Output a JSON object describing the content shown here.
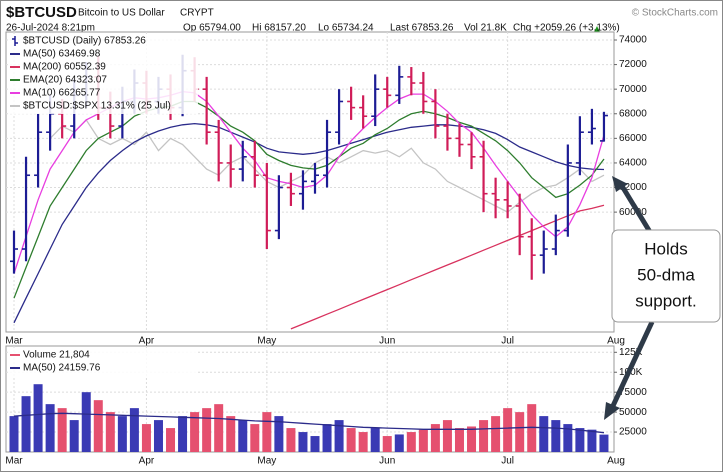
{
  "header": {
    "symbol": "$BTCUSD",
    "description": "Bitcoin to US Dollar",
    "exchange": "CRYPT",
    "copyright": "© StockCharts.com",
    "date": "26-Jul-2024 8:21pm",
    "open": "Op 65794.00",
    "high": "Hi 68157.20",
    "low": "Lo 65734.24",
    "last": "Last 67853.26",
    "volume": "Vol 21.8K",
    "change": "Chg +2059.26 (+3.13%)"
  },
  "chart_data": [
    {
      "type": "ohlc",
      "name": "$BTCUSD (Daily) 67853.26",
      "up_color": "#1c1c94",
      "down_color": "#d01c58",
      "categories": [
        "Mar",
        null,
        null,
        null,
        null,
        null,
        null,
        null,
        null,
        null,
        null,
        "Apr",
        null,
        null,
        null,
        null,
        null,
        null,
        null,
        null,
        null,
        "May",
        null,
        null,
        null,
        null,
        null,
        null,
        null,
        null,
        null,
        "Jun",
        null,
        null,
        null,
        null,
        null,
        null,
        null,
        null,
        null,
        "Jul",
        null,
        null,
        null,
        null,
        null,
        null,
        null,
        null,
        "Aug"
      ],
      "open": [
        56000,
        57000,
        63000,
        66500,
        68000,
        67000,
        69500,
        71000,
        68500,
        67000,
        69000,
        70500,
        69000,
        70000,
        68500,
        71500,
        70000,
        66500,
        64000,
        63500,
        64500,
        63000,
        58500,
        62000,
        61500,
        62500,
        63000,
        66500,
        69000,
        68500,
        67800,
        70000,
        69500,
        71000,
        70500,
        69000,
        67000,
        66000,
        65500,
        64500,
        61500,
        61000,
        60500,
        58000,
        56500,
        57000,
        58500,
        64000,
        66500,
        65794,
        null
      ],
      "high": [
        58500,
        64500,
        68000,
        69500,
        69200,
        70800,
        72200,
        72700,
        69800,
        70200,
        71600,
        71500,
        71000,
        71200,
        72800,
        72600,
        71000,
        67500,
        65500,
        65800,
        65800,
        64000,
        63000,
        63200,
        63400,
        64000,
        67500,
        70000,
        70200,
        69500,
        71200,
        71000,
        71900,
        71800,
        71400,
        70000,
        68000,
        67200,
        66500,
        65800,
        62800,
        62500,
        61500,
        59500,
        58500,
        59800,
        65500,
        67800,
        68400,
        68157.2,
        null
      ],
      "low": [
        55000,
        56000,
        62000,
        65000,
        66000,
        66000,
        68500,
        67500,
        66000,
        66000,
        68000,
        68000,
        68000,
        67500,
        67800,
        69000,
        65500,
        62500,
        62000,
        62500,
        62000,
        57000,
        57800,
        60500,
        60200,
        61500,
        62000,
        65500,
        67500,
        66800,
        67000,
        68500,
        68800,
        69500,
        68000,
        66000,
        65000,
        64500,
        63500,
        60000,
        59500,
        59500,
        56500,
        54500,
        55000,
        56500,
        58000,
        63000,
        65500,
        65734.24,
        null
      ],
      "close": [
        57000,
        63000,
        66500,
        68000,
        67000,
        69500,
        71000,
        68500,
        67000,
        69000,
        70500,
        69000,
        70000,
        68500,
        71500,
        70000,
        66500,
        64000,
        63500,
        64500,
        63000,
        58500,
        62000,
        61500,
        62500,
        63000,
        66500,
        69000,
        68500,
        67800,
        70000,
        69500,
        71000,
        70500,
        69000,
        67000,
        66000,
        65500,
        64500,
        61500,
        61000,
        60500,
        58000,
        56500,
        57000,
        58500,
        64000,
        66500,
        66800,
        67853.26,
        null
      ],
      "series": [
        {
          "name": "MA(50) 63469.98",
          "color": "#2b2b8a",
          "values": [
            51000,
            53000,
            55000,
            57000,
            59000,
            60500,
            62000,
            63200,
            64200,
            65000,
            65700,
            66200,
            66600,
            66900,
            67100,
            67200,
            67100,
            66900,
            66500,
            66100,
            65700,
            65200,
            64900,
            64800,
            64700,
            64800,
            65000,
            65300,
            65600,
            65900,
            66200,
            66500,
            66700,
            66900,
            67000,
            67100,
            67100,
            67000,
            66900,
            66700,
            66400,
            65900,
            65300,
            64900,
            64500,
            64100,
            63800,
            63600,
            63500,
            63470,
            null
          ]
        },
        {
          "name": "MA(200) 60552.39",
          "color": "#d8325e",
          "values": [
            null,
            null,
            null,
            null,
            null,
            null,
            null,
            null,
            null,
            null,
            null,
            null,
            null,
            null,
            null,
            null,
            null,
            null,
            null,
            null,
            null,
            null,
            null,
            50500,
            50900,
            51300,
            51700,
            52100,
            52500,
            52900,
            53300,
            53700,
            54100,
            54500,
            54900,
            55300,
            55700,
            56100,
            56500,
            56900,
            57300,
            57700,
            58100,
            58500,
            58900,
            59300,
            59700,
            60100,
            60300,
            60552,
            null
          ]
        },
        {
          "name": "EMA(20) 64323.07",
          "color": "#2e7d2e",
          "values": [
            53000,
            55500,
            58000,
            60500,
            62000,
            63500,
            65000,
            66000,
            66500,
            67000,
            67800,
            68200,
            68500,
            68600,
            69000,
            69000,
            68500,
            67800,
            67000,
            66500,
            65800,
            64700,
            64200,
            63800,
            63600,
            63500,
            63800,
            64500,
            65200,
            65600,
            66300,
            66800,
            67500,
            68000,
            68200,
            68000,
            67700,
            67300,
            67000,
            66400,
            65800,
            65000,
            64000,
            62800,
            62000,
            61200,
            61500,
            62200,
            63000,
            64323,
            null
          ]
        },
        {
          "name": "MA(10) 66265.77",
          "color": "#e83ee0",
          "values": [
            55000,
            58000,
            61000,
            63500,
            65000,
            66500,
            67500,
            68000,
            68500,
            69000,
            69300,
            69200,
            69300,
            69500,
            69800,
            69700,
            69000,
            67800,
            66500,
            65200,
            64200,
            62800,
            62500,
            62300,
            62000,
            62200,
            63000,
            64500,
            65800,
            66800,
            67700,
            68500,
            69200,
            69600,
            69600,
            69000,
            68200,
            67200,
            66500,
            65200,
            63800,
            62500,
            61200,
            59800,
            58800,
            58000,
            58800,
            60600,
            62800,
            66266,
            null
          ]
        },
        {
          "name": "$BTCUSD:$SPX 13.31% (25 Jul)",
          "color": "#c4c4c4",
          "values": [
            null,
            null,
            null,
            66000,
            67000,
            66500,
            67500,
            66000,
            65500,
            66000,
            65500,
            66500,
            65000,
            66000,
            65500,
            64500,
            63500,
            63000,
            64000,
            64500,
            63500,
            62500,
            62000,
            62500,
            63000,
            64000,
            64500,
            64000,
            64500,
            65000,
            64800,
            65000,
            64500,
            65200,
            64000,
            63500,
            62500,
            62000,
            61500,
            61000,
            60500,
            60000,
            60800,
            61500,
            62000,
            62200,
            62800,
            63500,
            62500,
            63000,
            null
          ]
        }
      ],
      "ylim": [
        50250,
        74650
      ],
      "yticks": [
        60000,
        62000,
        64000,
        66000,
        68000,
        70000,
        72000,
        74000
      ],
      "grid": true,
      "annotation": [
        "Holds",
        "50-dma",
        "support."
      ]
    },
    {
      "type": "bar",
      "name": "Volume 21,804",
      "up_color": "#3a3ab4",
      "down_color": "#e5506f",
      "categories": [
        "Mar",
        null,
        null,
        null,
        null,
        null,
        null,
        null,
        null,
        null,
        null,
        "Apr",
        null,
        null,
        null,
        null,
        null,
        null,
        null,
        null,
        null,
        "May",
        null,
        null,
        null,
        null,
        null,
        null,
        null,
        null,
        null,
        "Jun",
        null,
        null,
        null,
        null,
        null,
        null,
        null,
        null,
        null,
        "Jul",
        null,
        null,
        null,
        null,
        null,
        null,
        null,
        null,
        "Aug"
      ],
      "values": [
        45000,
        70000,
        85000,
        60000,
        55000,
        40000,
        75000,
        65000,
        50000,
        45000,
        55000,
        35000,
        40000,
        30000,
        45000,
        50000,
        55000,
        60000,
        45000,
        40000,
        35000,
        50000,
        45000,
        30000,
        25000,
        20000,
        35000,
        40000,
        30000,
        25000,
        30000,
        20000,
        22000,
        25000,
        28000,
        35000,
        40000,
        30000,
        32000,
        40000,
        45000,
        55000,
        50000,
        60000,
        45000,
        40000,
        35000,
        30000,
        28000,
        21804,
        null
      ],
      "series": [
        {
          "name": "MA(50) 24159.76",
          "color": "#2b2b8a",
          "values": [
            45000,
            46000,
            47000,
            48000,
            48500,
            48000,
            47500,
            47000,
            46500,
            46000,
            45500,
            45000,
            44500,
            44000,
            43500,
            43000,
            42500,
            42000,
            41000,
            40000,
            39000,
            38500,
            38000,
            37000,
            36000,
            35000,
            34000,
            33000,
            32000,
            31000,
            30500,
            30000,
            29500,
            29000,
            28500,
            28500,
            28500,
            28500,
            28500,
            29000,
            29500,
            30000,
            30500,
            31000,
            30500,
            30000,
            29000,
            27500,
            26000,
            24159.76,
            null
          ]
        }
      ],
      "ylim": [
        0,
        132900
      ],
      "yticks": [
        25000,
        50000,
        75000,
        {
          "value": 100000,
          "label": "100K"
        },
        {
          "value": 125000,
          "label": "125K"
        }
      ],
      "grid": true
    }
  ]
}
